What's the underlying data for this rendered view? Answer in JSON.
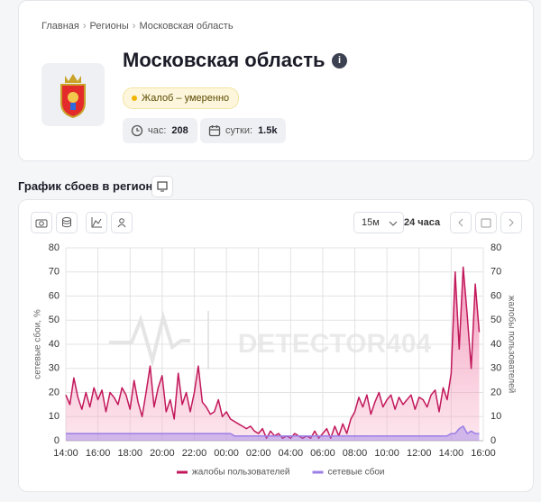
{
  "breadcrumb": [
    "Главная",
    "Регионы",
    "Московская область"
  ],
  "header": {
    "title": "Московская область",
    "badge": "Жалоб – умеренно",
    "stats": [
      {
        "label": "час:",
        "value": 208
      },
      {
        "label": "сутки:",
        "value": "1.5k"
      }
    ]
  },
  "section_title": "График сбоев в регионе",
  "controls": {
    "interval": "15м",
    "period": "24 часа"
  },
  "watermark": "DETECTOR404",
  "chart_data": {
    "type": "line",
    "categories": [
      "14:00",
      null,
      null,
      null,
      null,
      null,
      null,
      null,
      "16:00",
      null,
      null,
      null,
      null,
      null,
      null,
      null,
      "18:00",
      null,
      null,
      null,
      null,
      null,
      null,
      null,
      "20:00",
      null,
      null,
      null,
      null,
      null,
      null,
      null,
      "22:00",
      null,
      null,
      null,
      null,
      null,
      null,
      null,
      "00:00",
      null,
      null,
      null,
      null,
      null,
      null,
      null,
      "02:00",
      null,
      null,
      null,
      null,
      null,
      null,
      null,
      "04:00",
      null,
      null,
      null,
      null,
      null,
      null,
      null,
      "06:00",
      null,
      null,
      null,
      null,
      null,
      null,
      null,
      "08:00",
      null,
      null,
      null,
      null,
      null,
      null,
      null,
      "10:00",
      null,
      null,
      null,
      null,
      null,
      null,
      null,
      "12:00",
      null,
      null,
      null,
      null,
      null,
      null,
      null,
      "14:00",
      null,
      null,
      null,
      null,
      null,
      null,
      null,
      "16:00"
    ],
    "ylabel": "сетевые сбои, %",
    "y2label": "жалобы пользователей",
    "ylim": [
      0,
      80
    ],
    "yticks": [
      0,
      10,
      20,
      30,
      40,
      50,
      60,
      70,
      80
    ],
    "y2lim": [
      0,
      80
    ],
    "y2ticks": [
      0,
      10,
      20,
      30,
      40,
      50,
      60,
      70,
      80
    ],
    "grid": true,
    "series": [
      {
        "name": "жалобы пользователей",
        "color": "#c2185b",
        "axis": "y2",
        "values": [
          19,
          15,
          26,
          18,
          13,
          20,
          14,
          22,
          17,
          21,
          12,
          20,
          18,
          15,
          22,
          19,
          13,
          25,
          16,
          10,
          20,
          31,
          14,
          22,
          27,
          12,
          17,
          9,
          28,
          15,
          20,
          12,
          20,
          31,
          16,
          14,
          11,
          12,
          17,
          10,
          12,
          9,
          8,
          7,
          6,
          5,
          6,
          4,
          3,
          5,
          1,
          4,
          2,
          3,
          1,
          2,
          1,
          3,
          2,
          1,
          2,
          1,
          4,
          1,
          3,
          5,
          1,
          6,
          2,
          7,
          3,
          9,
          12,
          18,
          14,
          19,
          11,
          16,
          20,
          14,
          17,
          19,
          13,
          18,
          15,
          17,
          19,
          13,
          18,
          17,
          14,
          19,
          21,
          12,
          22,
          17,
          28,
          70,
          38,
          72,
          52,
          30,
          65,
          45,
          null
        ]
      },
      {
        "name": "сетевые сбои",
        "color": "#9b7fe6",
        "values": [
          3,
          3,
          3,
          3,
          3,
          3,
          3,
          3,
          3,
          3,
          3,
          3,
          3,
          3,
          3,
          3,
          3,
          3,
          3,
          3,
          3,
          3,
          3,
          3,
          3,
          3,
          3,
          3,
          3,
          3,
          3,
          3,
          3,
          3,
          3,
          3,
          3,
          3,
          3,
          3,
          3,
          3,
          2,
          2,
          2,
          2,
          2,
          2,
          2,
          2,
          2,
          2,
          2,
          2,
          2,
          2,
          2,
          2,
          2,
          2,
          2,
          2,
          2,
          2,
          2,
          2,
          2,
          2,
          2,
          2,
          2,
          2,
          2,
          2,
          2,
          2,
          2,
          2,
          2,
          2,
          2,
          2,
          2,
          2,
          2,
          2,
          2,
          2,
          2,
          2,
          2,
          2,
          2,
          2,
          2,
          2,
          3,
          3,
          5,
          6,
          3,
          4,
          3,
          3,
          null
        ]
      }
    ]
  }
}
